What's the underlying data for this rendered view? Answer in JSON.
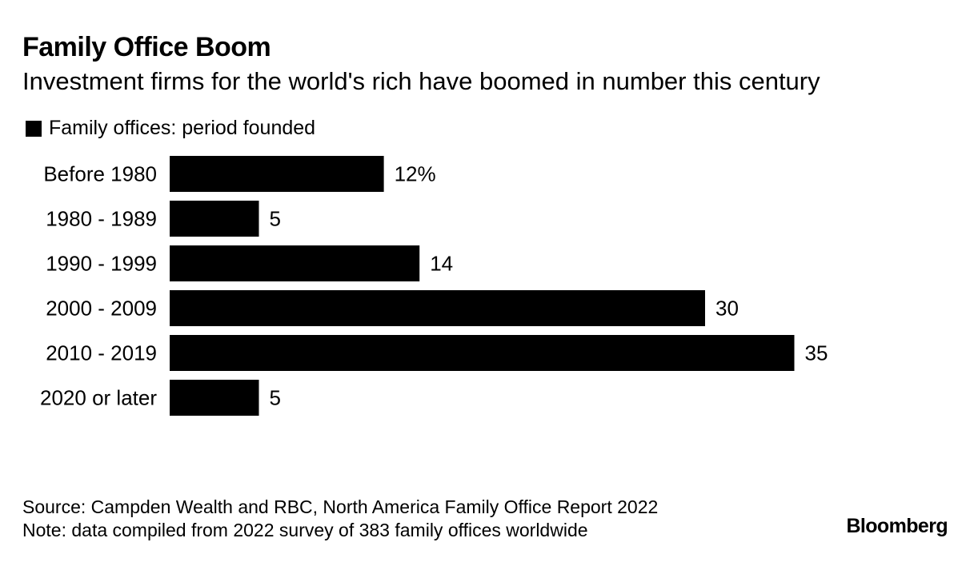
{
  "title": "Family Office Boom",
  "subtitle": "Investment firms for the world's rich have boomed in number this century",
  "legend": {
    "label": "Family offices: period founded"
  },
  "footer": {
    "source": "Source: Campden Wealth and RBC, North America Family Office Report 2022",
    "note": "Note: data compiled from 2022 survey of 383 family offices worldwide",
    "brand": "Bloomberg"
  },
  "colors": {
    "bar": "#000000",
    "text": "#000000",
    "background": "#ffffff"
  },
  "chart_data": {
    "type": "bar",
    "orientation": "horizontal",
    "title": "Family Office Boom",
    "subtitle": "Investment firms for the world's rich have boomed in number this century",
    "series": [
      {
        "name": "Family offices: period founded",
        "values": [
          12,
          5,
          14,
          30,
          35,
          5
        ]
      }
    ],
    "categories": [
      "Before 1980",
      "1980 - 1989",
      "1990 - 1999",
      "2000 - 2009",
      "2010 - 2019",
      "2020 or later"
    ],
    "values": [
      12,
      5,
      14,
      30,
      35,
      5
    ],
    "value_labels": [
      "12%",
      "5",
      "14",
      "30",
      "35",
      "5"
    ],
    "unit": "%",
    "xlabel": "",
    "ylabel": "",
    "xlim": [
      0,
      35
    ],
    "grid": false,
    "legend_position": "top-left"
  }
}
